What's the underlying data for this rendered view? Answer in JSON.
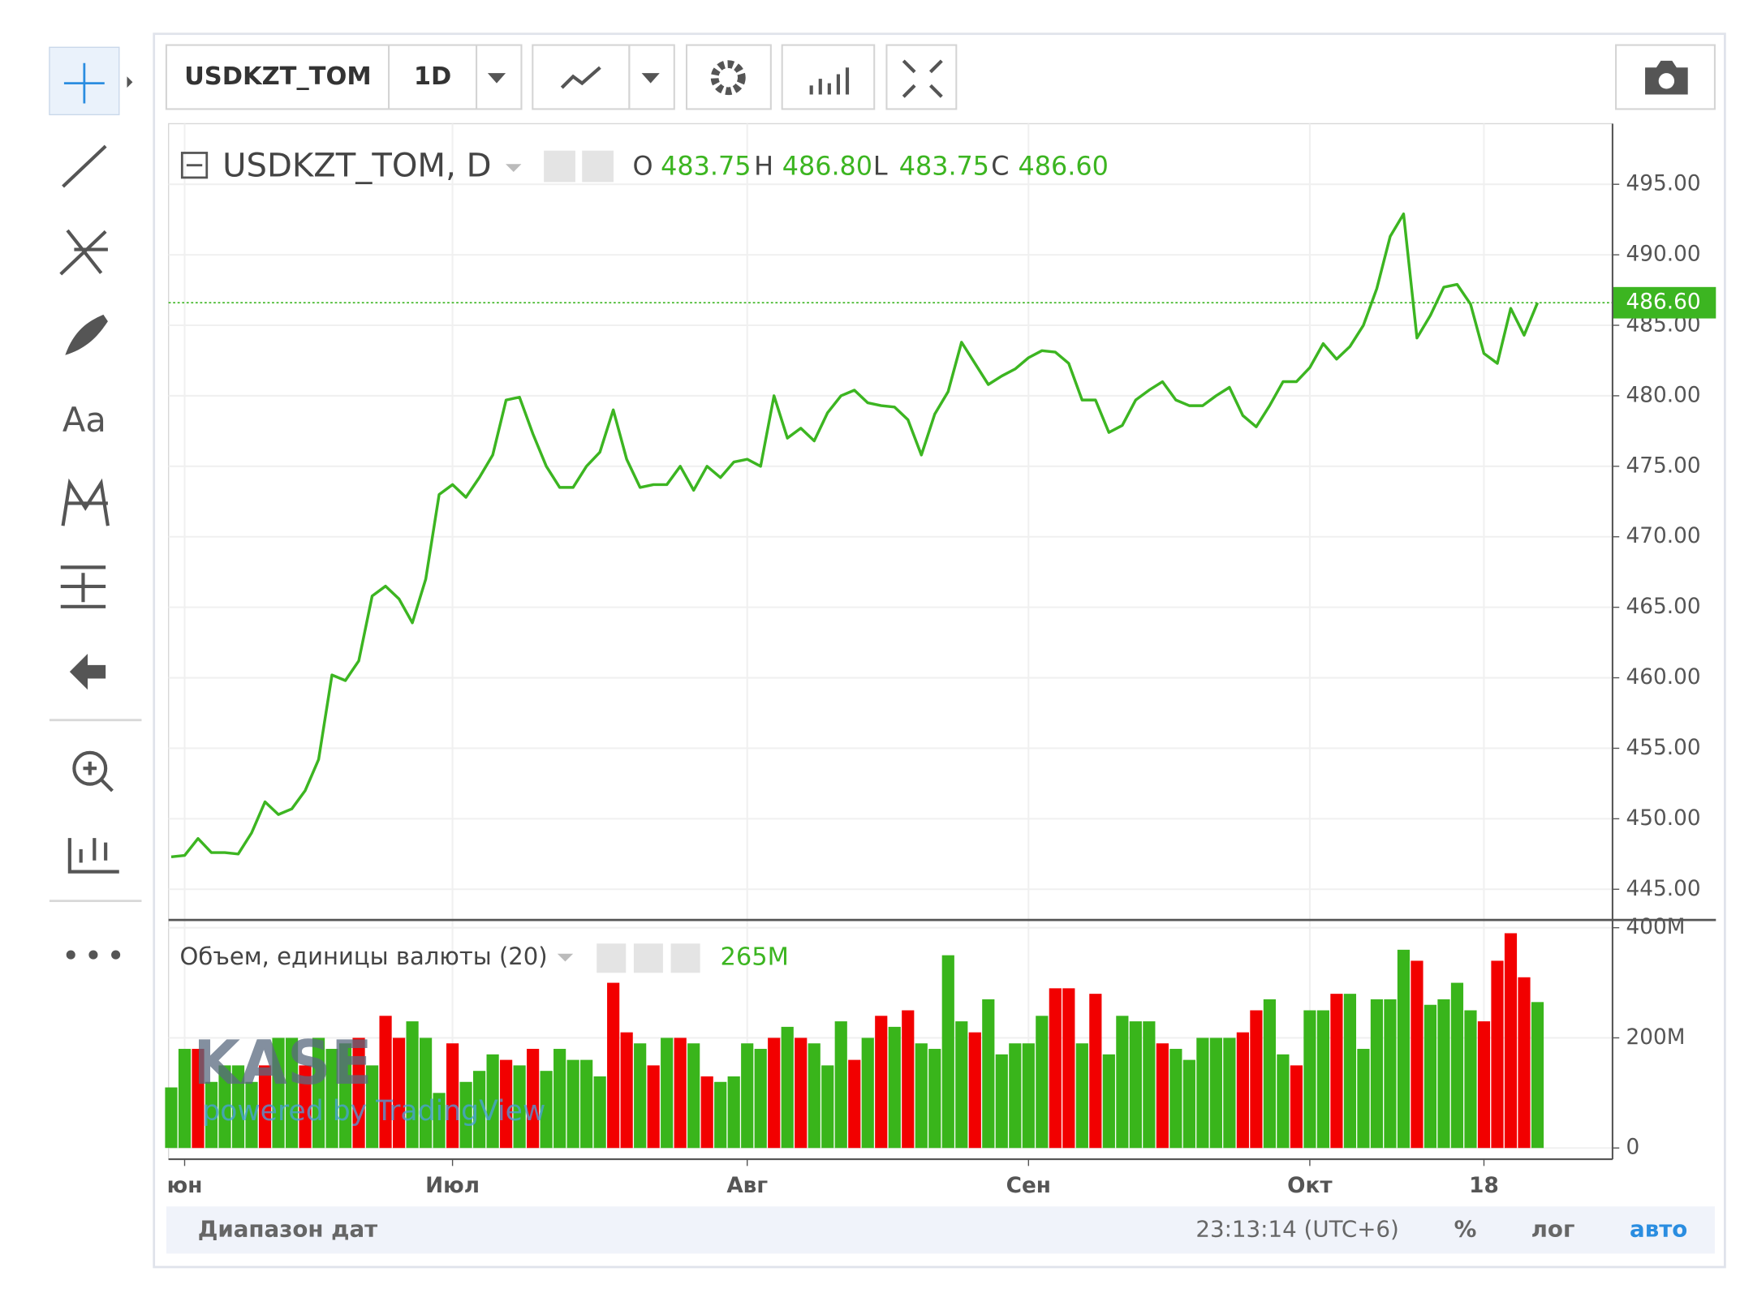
{
  "toolbar": {
    "symbol": "USDKZT_TOM",
    "interval": "1D"
  },
  "sidebar": {
    "text_tool": "Aa"
  },
  "legend": {
    "title": "USDKZT_TOM, D",
    "o_label": "O",
    "open": "483.75",
    "h_label": "H",
    "high": "486.80",
    "l_label": "L",
    "low": "483.75",
    "c_label": "C",
    "close": "486.60",
    "price_label": "486.60"
  },
  "volume_legend": {
    "title": "Объем, единицы валюты (20)",
    "value": "265M"
  },
  "watermark": {
    "logo": "KASE",
    "powered": "powered by TradingView"
  },
  "footer": {
    "range": "Диапазон дат",
    "time": "23:13:14 (UTC+6)",
    "percent": "%",
    "log": "лог",
    "auto": "авто"
  },
  "chart_data": [
    {
      "type": "line",
      "color": "#3cb521",
      "x": [
        0,
        1,
        2,
        3,
        4,
        5,
        6,
        7,
        8,
        9,
        10,
        11,
        12,
        13,
        14,
        15,
        16,
        17,
        18,
        19,
        20,
        21,
        22,
        23,
        24,
        25,
        26,
        27,
        28,
        29,
        30,
        31,
        32,
        33,
        34,
        35,
        36,
        37,
        38,
        39,
        40,
        41,
        42,
        43,
        44,
        45,
        46,
        47,
        48,
        49,
        50,
        51,
        52,
        53,
        54,
        55,
        56,
        57,
        58,
        59,
        60,
        61,
        62,
        63,
        64,
        65,
        66,
        67,
        68,
        69,
        70,
        71,
        72,
        73,
        74,
        75,
        76,
        77,
        78,
        79,
        80,
        81,
        82,
        83,
        84,
        85,
        86,
        87,
        88,
        89,
        90,
        91,
        92,
        93,
        94,
        95,
        96,
        97,
        98,
        99,
        100,
        101,
        102
      ],
      "values": [
        447.3,
        447.4,
        448.6,
        447.6,
        447.6,
        447.5,
        449.0,
        451.2,
        450.3,
        450.7,
        452.0,
        454.2,
        460.2,
        459.8,
        461.2,
        465.8,
        466.5,
        465.6,
        463.9,
        467.0,
        473.0,
        473.7,
        472.8,
        474.2,
        475.8,
        479.7,
        479.9,
        477.3,
        475.0,
        473.5,
        473.5,
        475.0,
        476.0,
        479.0,
        475.5,
        473.5,
        473.7,
        473.7,
        475.0,
        473.3,
        475.0,
        474.2,
        475.3,
        475.5,
        475.0,
        480.0,
        477.0,
        477.7,
        476.8,
        478.8,
        480.0,
        480.4,
        479.5,
        479.3,
        479.2,
        478.3,
        475.8,
        478.7,
        480.3,
        483.8,
        482.3,
        480.8,
        481.4,
        481.9,
        482.7,
        483.2,
        483.1,
        482.3,
        479.7,
        479.7,
        477.4,
        477.9,
        479.7,
        480.4,
        481.0,
        479.7,
        479.3,
        479.3,
        480.0,
        480.6,
        478.6,
        477.8,
        479.3,
        481.0,
        481.0,
        482.0,
        483.7,
        482.6,
        483.5,
        485.0,
        487.6,
        491.3,
        492.9,
        484.1,
        485.7,
        487.7,
        487.9,
        486.5,
        483.0,
        482.3,
        486.2,
        484.3,
        486.6
      ],
      "xlim": [
        -0.2,
        107.6
      ],
      "ylim": [
        442.9,
        499.3
      ],
      "yticks": [
        {
          "value": 445,
          "label": "445.00"
        },
        {
          "value": 450,
          "label": "450.00"
        },
        {
          "value": 455,
          "label": "455.00"
        },
        {
          "value": 460,
          "label": "460.00"
        },
        {
          "value": 465,
          "label": "465.00"
        },
        {
          "value": 470,
          "label": "470.00"
        },
        {
          "value": 475,
          "label": "475.00"
        },
        {
          "value": 480,
          "label": "480.00"
        },
        {
          "value": 485,
          "label": "485.00"
        },
        {
          "value": 490,
          "label": "490.00"
        },
        {
          "value": 495,
          "label": "495.00"
        }
      ],
      "grid": true
    },
    {
      "type": "bar",
      "x": [
        0,
        1,
        2,
        3,
        4,
        5,
        6,
        7,
        8,
        9,
        10,
        11,
        12,
        13,
        14,
        15,
        16,
        17,
        18,
        19,
        20,
        21,
        22,
        23,
        24,
        25,
        26,
        27,
        28,
        29,
        30,
        31,
        32,
        33,
        34,
        35,
        36,
        37,
        38,
        39,
        40,
        41,
        42,
        43,
        44,
        45,
        46,
        47,
        48,
        49,
        50,
        51,
        52,
        53,
        54,
        55,
        56,
        57,
        58,
        59,
        60,
        61,
        62,
        63,
        64,
        65,
        66,
        67,
        68,
        69,
        70,
        71,
        72,
        73,
        74,
        75,
        76,
        77,
        78,
        79,
        80,
        81,
        82,
        83,
        84,
        85,
        86,
        87,
        88,
        89,
        90,
        91,
        92,
        93,
        94,
        95,
        96,
        97,
        98,
        99,
        100,
        101,
        102
      ],
      "values": [
        110000000,
        180000000,
        180000000,
        120000000,
        150000000,
        150000000,
        120000000,
        150000000,
        200000000,
        200000000,
        150000000,
        200000000,
        180000000,
        190000000,
        200000000,
        150000000,
        240000000,
        200000000,
        230000000,
        200000000,
        100000000,
        190000000,
        120000000,
        140000000,
        170000000,
        160000000,
        150000000,
        180000000,
        140000000,
        180000000,
        160000000,
        160000000,
        130000000,
        300000000,
        210000000,
        190000000,
        150000000,
        200000000,
        200000000,
        190000000,
        130000000,
        120000000,
        130000000,
        190000000,
        180000000,
        200000000,
        220000000,
        200000000,
        190000000,
        150000000,
        230000000,
        160000000,
        200000000,
        240000000,
        220000000,
        250000000,
        190000000,
        180000000,
        350000000,
        230000000,
        210000000,
        270000000,
        170000000,
        190000000,
        190000000,
        240000000,
        290000000,
        290000000,
        190000000,
        280000000,
        170000000,
        240000000,
        230000000,
        230000000,
        190000000,
        180000000,
        160000000,
        200000000,
        200000000,
        200000000,
        210000000,
        250000000,
        270000000,
        170000000,
        150000000,
        250000000,
        250000000,
        280000000,
        280000000,
        180000000,
        270000000,
        270000000,
        360000000,
        340000000,
        260000000,
        270000000,
        300000000,
        250000000,
        230000000,
        340000000,
        390000000,
        310000000,
        265000000
      ],
      "colors": [
        "#39b51b",
        "#39b51b",
        "#f20000",
        "#39b51b",
        "#39b51b",
        "#39b51b",
        "#39b51b",
        "#f20000",
        "#39b51b",
        "#39b51b",
        "#f20000",
        "#39b51b",
        "#39b51b",
        "#39b51b",
        "#f20000",
        "#39b51b",
        "#f20000",
        "#f20000",
        "#39b51b",
        "#39b51b",
        "#39b51b",
        "#f20000",
        "#39b51b",
        "#39b51b",
        "#39b51b",
        "#f20000",
        "#39b51b",
        "#f20000",
        "#39b51b",
        "#39b51b",
        "#39b51b",
        "#39b51b",
        "#39b51b",
        "#f20000",
        "#f20000",
        "#39b51b",
        "#f20000",
        "#39b51b",
        "#f20000",
        "#39b51b",
        "#f20000",
        "#39b51b",
        "#39b51b",
        "#39b51b",
        "#39b51b",
        "#f20000",
        "#39b51b",
        "#f20000",
        "#39b51b",
        "#39b51b",
        "#39b51b",
        "#f20000",
        "#39b51b",
        "#f20000",
        "#39b51b",
        "#f20000",
        "#39b51b",
        "#39b51b",
        "#39b51b",
        "#39b51b",
        "#f20000",
        "#39b51b",
        "#39b51b",
        "#39b51b",
        "#39b51b",
        "#39b51b",
        "#f20000",
        "#f20000",
        "#39b51b",
        "#f20000",
        "#39b51b",
        "#39b51b",
        "#39b51b",
        "#39b51b",
        "#f20000",
        "#39b51b",
        "#39b51b",
        "#39b51b",
        "#39b51b",
        "#39b51b",
        "#f20000",
        "#f20000",
        "#39b51b",
        "#39b51b",
        "#f20000",
        "#39b51b",
        "#39b51b",
        "#f20000",
        "#39b51b",
        "#39b51b",
        "#39b51b",
        "#39b51b",
        "#39b51b",
        "#f20000",
        "#39b51b",
        "#39b51b",
        "#39b51b",
        "#39b51b",
        "#f20000",
        "#f20000",
        "#f20000",
        "#f20000",
        "#39b51b"
      ],
      "xlim": [
        -0.2,
        107.6
      ],
      "ylim": [
        0,
        412000000
      ],
      "yticks": [
        0,
        {
          "value": 200000000,
          "label": "200M"
        },
        {
          "value": 400000000,
          "label": "400M"
        }
      ],
      "xticks": [
        {
          "value": 1,
          "label": "юн"
        },
        {
          "value": 21,
          "label": "Июл"
        },
        {
          "value": 43,
          "label": "Авг"
        },
        {
          "value": 64,
          "label": "Сен"
        },
        {
          "value": 85,
          "label": "Окт"
        },
        {
          "value": 98,
          "label": "18"
        }
      ],
      "grid": true
    }
  ]
}
